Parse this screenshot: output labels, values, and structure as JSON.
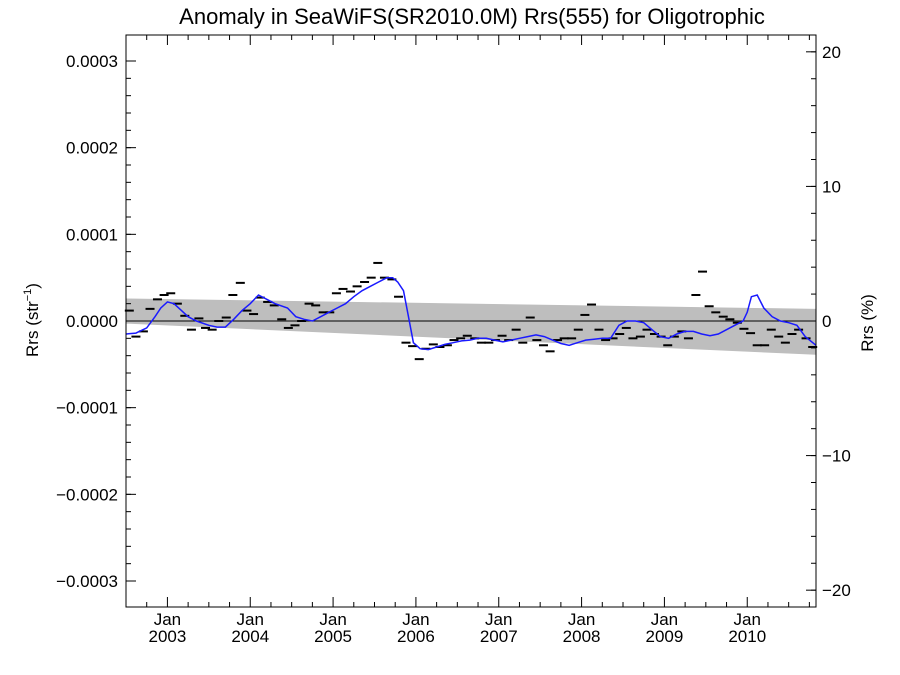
{
  "chart_data": {
    "type": "line",
    "title": "Anomaly in SeaWiFS(SR2010.0M) Rrs(555) for Oligotrophic",
    "ylabel_left": {
      "main": "Rrs (str",
      "sup": "−1",
      "close": ")"
    },
    "ylabel_right": "Rrs (%)",
    "xlim": [
      2002.5,
      2010.83
    ],
    "ylim_left": [
      -0.00033,
      0.00033
    ],
    "ylim_right": [
      -21.25,
      21.25
    ],
    "left_ticks": [
      {
        "value": 0.0003,
        "label": "0.0003"
      },
      {
        "value": 0.0002,
        "label": "0.0002"
      },
      {
        "value": 0.0001,
        "label": "0.0001"
      },
      {
        "value": 0.0,
        "label": "0.0000"
      },
      {
        "value": -0.0001,
        "label": "−0.0001"
      },
      {
        "value": -0.0002,
        "label": "−0.0002"
      },
      {
        "value": -0.0003,
        "label": "−0.0003"
      }
    ],
    "right_ticks": [
      {
        "value": 20,
        "label": "20"
      },
      {
        "value": 10,
        "label": "10"
      },
      {
        "value": 0,
        "label": "0"
      },
      {
        "value": -10,
        "label": "−10"
      },
      {
        "value": -20,
        "label": "−20"
      }
    ],
    "x_ticks": [
      {
        "value": 2003.0,
        "month": "Jan",
        "year": "2003"
      },
      {
        "value": 2004.0,
        "month": "Jan",
        "year": "2004"
      },
      {
        "value": 2005.0,
        "month": "Jan",
        "year": "2005"
      },
      {
        "value": 2006.0,
        "month": "Jan",
        "year": "2006"
      },
      {
        "value": 2007.0,
        "month": "Jan",
        "year": "2007"
      },
      {
        "value": 2008.0,
        "month": "Jan",
        "year": "2008"
      },
      {
        "value": 2009.0,
        "month": "Jan",
        "year": "2009"
      },
      {
        "value": 2010.0,
        "month": "Jan",
        "year": "2010"
      }
    ],
    "zero_line": 0,
    "uncertainty_band": {
      "x": [
        2002.5,
        2010.83
      ],
      "upper": [
        2.6e-05,
        1.4e-05
      ],
      "lower": [
        -3e-06,
        -3.9e-05
      ]
    },
    "monthly_anomalies": {
      "x": [
        2002.54,
        2002.62,
        2002.71,
        2002.79,
        2002.88,
        2002.96,
        2003.04,
        2003.12,
        2003.21,
        2003.29,
        2003.38,
        2003.46,
        2003.54,
        2003.62,
        2003.71,
        2003.79,
        2003.88,
        2003.96,
        2004.04,
        2004.12,
        2004.21,
        2004.29,
        2004.38,
        2004.46,
        2004.54,
        2004.62,
        2004.71,
        2004.79,
        2004.88,
        2004.96,
        2005.04,
        2005.12,
        2005.21,
        2005.29,
        2005.38,
        2005.46,
        2005.54,
        2005.62,
        2005.71,
        2005.79,
        2005.88,
        2005.96,
        2006.04,
        2006.12,
        2006.21,
        2006.29,
        2006.38,
        2006.46,
        2006.54,
        2006.62,
        2006.71,
        2006.79,
        2006.88,
        2006.96,
        2007.04,
        2007.12,
        2007.21,
        2007.29,
        2007.38,
        2007.46,
        2007.54,
        2007.62,
        2007.71,
        2007.79,
        2007.88,
        2007.96,
        2008.04,
        2008.12,
        2008.21,
        2008.29,
        2008.38,
        2008.46,
        2008.54,
        2008.62,
        2008.71,
        2008.79,
        2008.88,
        2008.96,
        2009.04,
        2009.12,
        2009.21,
        2009.29,
        2009.38,
        2009.46,
        2009.54,
        2009.62,
        2009.71,
        2009.79,
        2009.88,
        2009.96,
        2010.04,
        2010.12,
        2010.21,
        2010.29,
        2010.38,
        2010.46,
        2010.54,
        2010.62,
        2010.71,
        2010.79
      ],
      "values": [
        1.2e-05,
        -1.8e-05,
        -1.2e-05,
        1.4e-05,
        2.5e-05,
        3e-05,
        3.2e-05,
        2e-05,
        6e-06,
        -1e-05,
        3e-06,
        -8e-06,
        -1e-05,
        0.0,
        4e-06,
        3e-05,
        4.4e-05,
        1.2e-05,
        8e-06,
        2.7e-05,
        2.2e-05,
        1.8e-05,
        2e-06,
        -8e-06,
        -5e-06,
        0.0,
        2e-05,
        1.8e-05,
        1e-05,
        1e-05,
        3.2e-05,
        3.7e-05,
        3.4e-05,
        4e-05,
        4.5e-05,
        5e-05,
        6.7e-05,
        5e-05,
        4.8e-05,
        2.8e-05,
        -2.5e-05,
        -2.9e-05,
        -4.4e-05,
        -3.2e-05,
        -2.7e-05,
        -3e-05,
        -2.8e-05,
        -2.2e-05,
        -2e-05,
        -1.7e-05,
        -2e-05,
        -2.5e-05,
        -2.5e-05,
        -2.2e-05,
        -1.7e-05,
        -2.2e-05,
        -1e-05,
        -2.5e-05,
        4e-06,
        -2.2e-05,
        -2.8e-05,
        -3.5e-05,
        -2.2e-05,
        -2e-05,
        -2e-05,
        -1e-05,
        7e-06,
        1.9e-05,
        -1e-05,
        -2.2e-05,
        -2e-05,
        -1.5e-05,
        -8e-06,
        -2e-05,
        -1.8e-05,
        -1e-05,
        -1.5e-05,
        -1.8e-05,
        -2.8e-05,
        -1.8e-05,
        -1.2e-05,
        -2e-05,
        3e-05,
        5.7e-05,
        1.7e-05,
        1e-05,
        5e-06,
        2e-06,
        -2e-06,
        -9e-06,
        -1.4e-05,
        -2.8e-05,
        -2.8e-05,
        -1e-05,
        -1.8e-05,
        -2.5e-05,
        -1.5e-05,
        -1e-05,
        -2e-05,
        -3e-05
      ]
    },
    "running_mean": {
      "x": [
        2002.5,
        2002.62,
        2002.75,
        2002.85,
        2002.92,
        2003.0,
        2003.08,
        2003.17,
        2003.25,
        2003.35,
        2003.5,
        2003.6,
        2003.7,
        2003.8,
        2003.9,
        2004.0,
        2004.1,
        2004.2,
        2004.3,
        2004.45,
        2004.55,
        2004.65,
        2004.75,
        2004.85,
        2004.95,
        2005.05,
        2005.15,
        2005.25,
        2005.35,
        2005.45,
        2005.55,
        2005.65,
        2005.72,
        2005.78,
        2005.85,
        2005.92,
        2005.97,
        2006.05,
        2006.15,
        2006.25,
        2006.35,
        2006.45,
        2006.55,
        2006.65,
        2006.75,
        2006.85,
        2006.95,
        2007.05,
        2007.15,
        2007.25,
        2007.35,
        2007.45,
        2007.55,
        2007.65,
        2007.75,
        2007.85,
        2007.95,
        2008.05,
        2008.15,
        2008.25,
        2008.35,
        2008.45,
        2008.55,
        2008.65,
        2008.75,
        2008.85,
        2008.95,
        2009.05,
        2009.15,
        2009.25,
        2009.35,
        2009.45,
        2009.55,
        2009.65,
        2009.75,
        2009.85,
        2009.95,
        2010.0,
        2010.05,
        2010.12,
        2010.2,
        2010.3,
        2010.4,
        2010.5,
        2010.6,
        2010.7,
        2010.83
      ],
      "values": [
        -1.5e-05,
        -1.4e-05,
        -8e-06,
        5e-06,
        1.5e-05,
        2.2e-05,
        2e-05,
        1.2e-05,
        5e-06,
        0.0,
        -5e-06,
        -7e-06,
        -7e-06,
        2e-06,
        1.2e-05,
        2e-05,
        3e-05,
        2.5e-05,
        2e-05,
        1.5e-05,
        5e-06,
        2e-06,
        0.0,
        5e-06,
        1e-05,
        1.5e-05,
        2e-05,
        2.8e-05,
        3.5e-05,
        4e-05,
        4.5e-05,
        5e-05,
        5e-05,
        4.5e-05,
        3.5e-05,
        0.0,
        -2.5e-05,
        -3.2e-05,
        -3.3e-05,
        -3e-05,
        -2.7e-05,
        -2.5e-05,
        -2.3e-05,
        -2.2e-05,
        -2e-05,
        -2e-05,
        -2.2e-05,
        -2.4e-05,
        -2.2e-05,
        -2e-05,
        -1.8e-05,
        -1.6e-05,
        -1.8e-05,
        -2.2e-05,
        -2.6e-05,
        -2.8e-05,
        -2.5e-05,
        -2.2e-05,
        -2.1e-05,
        -2e-05,
        -2e-05,
        -5e-06,
        0.0,
        0.0,
        -2e-06,
        -1e-05,
        -1.8e-05,
        -2e-05,
        -1.5e-05,
        -1.2e-05,
        -1.2e-05,
        -1.5e-05,
        -1.7e-05,
        -1.5e-05,
        -1e-05,
        -5e-06,
        0.0,
        1e-05,
        2.8e-05,
        3e-05,
        1.5e-05,
        5e-06,
        0.0,
        -2e-06,
        -5e-06,
        -1.8e-05,
        -2.8e-05
      ]
    },
    "colors": {
      "band": "#bebebe",
      "running_mean": "#1a1aff",
      "markers": "#000000",
      "zero_line": "#000000",
      "axes": "#000000"
    },
    "grid": false
  }
}
